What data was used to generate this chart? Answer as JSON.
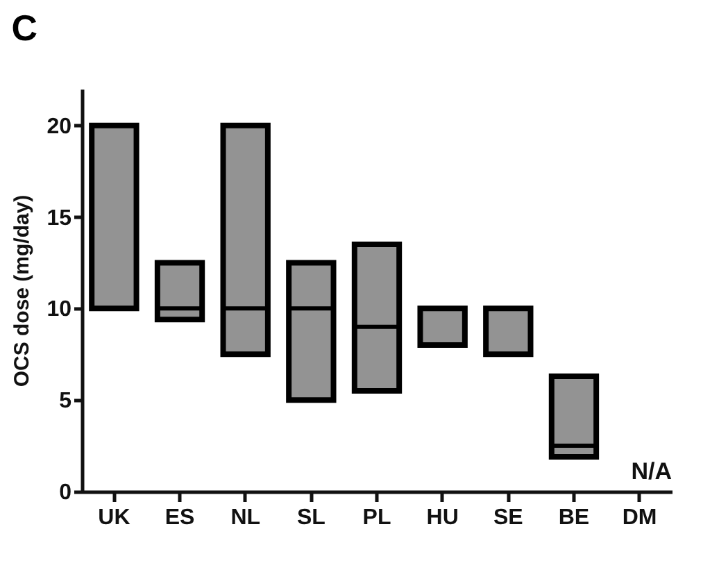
{
  "chart_data": {
    "type": "box",
    "title": "C",
    "ylabel": "OCS dose  (mg/day)",
    "categories": [
      "UK",
      "ES",
      "NL",
      "SL",
      "PL",
      "HU",
      "SE",
      "BE",
      "DM"
    ],
    "boxes": [
      {
        "low": 10,
        "q1": 10,
        "median": 10,
        "q3": 20,
        "high": 20
      },
      {
        "low": 9.4,
        "q1": 9.4,
        "median": 10,
        "q3": 12.5,
        "high": 12.5
      },
      {
        "low": 7.5,
        "q1": 7.5,
        "median": 10,
        "q3": 20,
        "high": 20
      },
      {
        "low": 5,
        "q1": 5,
        "median": 10,
        "q3": 12.5,
        "high": 12.5
      },
      {
        "low": 5.5,
        "q1": 5.5,
        "median": 9,
        "q3": 13.5,
        "high": 13.5
      },
      {
        "low": 8,
        "q1": 8,
        "median": 10,
        "q3": 10,
        "high": 10
      },
      {
        "low": 7.5,
        "q1": 7.5,
        "median": 10,
        "q3": 10,
        "high": 10
      },
      {
        "low": 1.9,
        "q1": 1.9,
        "median": 2.5,
        "q3": 6.3,
        "high": 6.3
      },
      null
    ],
    "color": "#939393",
    "ylim": [
      0,
      22
    ],
    "yticks": [
      0,
      5,
      10,
      15,
      20
    ],
    "annotations": [
      "N/A"
    ],
    "grid": false
  }
}
